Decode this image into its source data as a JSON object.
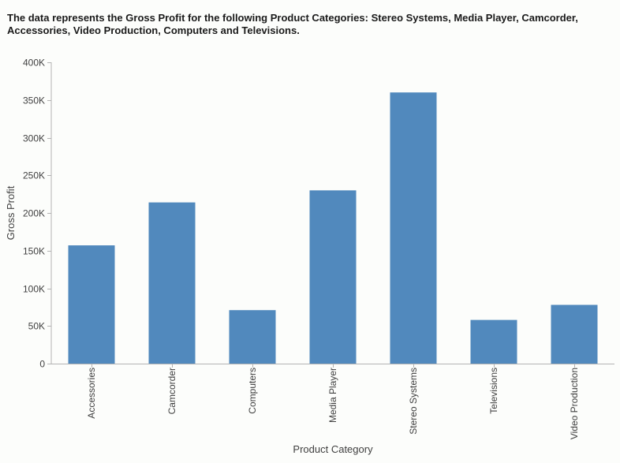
{
  "chart_data": {
    "type": "bar",
    "title": "The data represents the Gross Profit for the following Product Categories: Stereo Systems, Media Player, Camcorder, Accessories, Video Production, Computers and Televisions.",
    "xlabel": "Product Category",
    "ylabel": "Gross Profit",
    "categories": [
      "Accessories",
      "Camcorder",
      "Computers",
      "Media Player",
      "Stereo Systems",
      "Televisions",
      "Video Production"
    ],
    "values": [
      157000,
      214000,
      71000,
      230000,
      360000,
      58000,
      78000
    ],
    "ylim": [
      0,
      400000
    ],
    "yticks": [
      0,
      50000,
      100000,
      150000,
      200000,
      250000,
      300000,
      350000,
      400000
    ],
    "ytick_labels": [
      "0",
      "50K",
      "100K",
      "150K",
      "200K",
      "250K",
      "300K",
      "350K",
      "400K"
    ],
    "grid": false,
    "legend": "none",
    "colors": {
      "bar": "#5189bd",
      "axis": "#b3b3b3",
      "text": "#404040"
    }
  }
}
